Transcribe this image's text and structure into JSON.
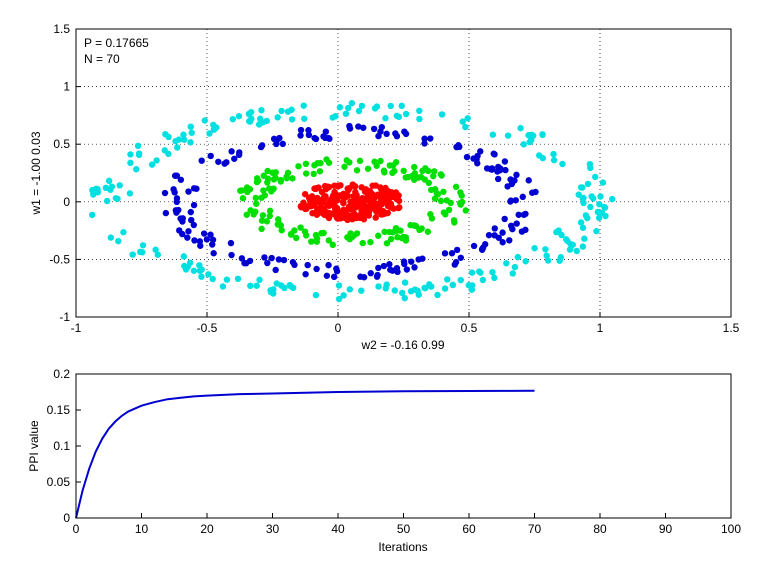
{
  "chart_data": [
    {
      "type": "scatter",
      "xlabel": "w2 = -0.16  0.99",
      "ylabel": "w1 = -1.00  0.03",
      "xlim": [
        -1,
        1.5
      ],
      "ylim": [
        -1,
        1.5
      ],
      "xticks": [
        "-1",
        "-0.5",
        "0",
        "0.5",
        "1",
        "1.5"
      ],
      "yticks": [
        "-1",
        "-0.5",
        "0",
        "0.5",
        "1",
        "1.5"
      ],
      "grid": true,
      "annotations": [
        "P = 0.17665",
        "N = 70"
      ],
      "series": [
        {
          "color": "#00e0e0",
          "rx": 1.0,
          "ry": 0.86,
          "rx_min": 0.84,
          "ry_min": 0.72,
          "count": 220
        },
        {
          "color": "#0000d0",
          "rx": 0.72,
          "ry": 0.66,
          "rx_min": 0.6,
          "ry_min": 0.5,
          "count": 180
        },
        {
          "color": "#00e000",
          "rx": 0.45,
          "ry": 0.38,
          "rx_min": 0.32,
          "ry_min": 0.25,
          "count": 160
        },
        {
          "color": "#ff0000",
          "rx": 0.2,
          "ry": 0.16,
          "rx_min": 0.0,
          "ry_min": 0.0,
          "count": 230
        }
      ]
    },
    {
      "type": "line",
      "xlabel": "Iterations",
      "ylabel": "PPI value",
      "xlim": [
        0,
        100
      ],
      "ylim": [
        0,
        0.2
      ],
      "xticks": [
        "0",
        "10",
        "20",
        "30",
        "40",
        "50",
        "60",
        "70",
        "80",
        "90",
        "100"
      ],
      "yticks": [
        "0",
        "0.05",
        "0.1",
        "0.15",
        "0.2"
      ],
      "grid": false,
      "series": [
        {
          "color": "#0000d0",
          "x": [
            0,
            1,
            2,
            3,
            4,
            5,
            6,
            7,
            8,
            9,
            10,
            12,
            14,
            16,
            18,
            20,
            25,
            30,
            35,
            40,
            45,
            50,
            55,
            60,
            65,
            70
          ],
          "y": [
            0.0,
            0.038,
            0.068,
            0.092,
            0.11,
            0.124,
            0.134,
            0.142,
            0.148,
            0.152,
            0.156,
            0.161,
            0.165,
            0.167,
            0.169,
            0.17,
            0.172,
            0.173,
            0.174,
            0.175,
            0.1755,
            0.176,
            0.1762,
            0.1764,
            0.1765,
            0.17665
          ]
        }
      ]
    }
  ]
}
